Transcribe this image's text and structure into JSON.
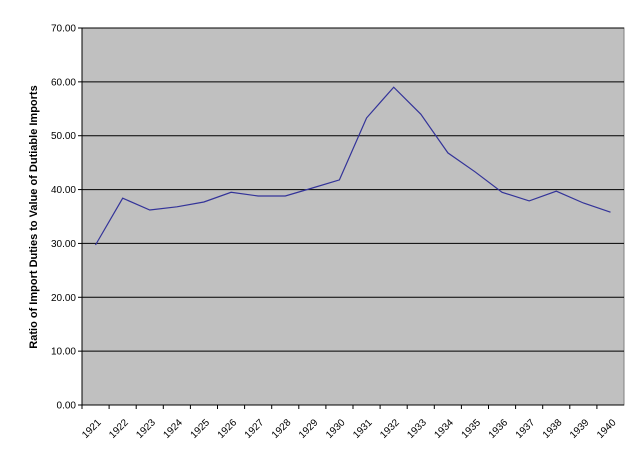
{
  "chart_data": {
    "type": "line",
    "y_label": "Ratio of Import Duties to Value of Dutiable Imports",
    "categories": [
      "1921",
      "1922",
      "1923",
      "1924",
      "1925",
      "1926",
      "1927",
      "1928",
      "1929",
      "1930",
      "1931",
      "1932",
      "1933",
      "1934",
      "1935",
      "1936",
      "1937",
      "1938",
      "1939",
      "1940"
    ],
    "series": [
      {
        "color": "#333399",
        "values": [
          29.7,
          38.4,
          36.2,
          36.8,
          37.7,
          39.5,
          38.8,
          38.8,
          40.3,
          41.8,
          53.3,
          59.0,
          54.0,
          46.8,
          43.3,
          39.5,
          37.9,
          39.7,
          37.5,
          35.8
        ]
      }
    ],
    "ylim": [
      0,
      70
    ],
    "yticks": [
      {
        "value": 0,
        "label": "0.00"
      },
      {
        "value": 10,
        "label": "10.00"
      },
      {
        "value": 20,
        "label": "20.00"
      },
      {
        "value": 30,
        "label": "30.00"
      },
      {
        "value": 40,
        "label": "40.00"
      },
      {
        "value": 50,
        "label": "50.00"
      },
      {
        "value": 60,
        "label": "60.00"
      },
      {
        "value": 70,
        "label": "70.00"
      }
    ],
    "grid": true,
    "plot_background": "#c0c0c0"
  }
}
